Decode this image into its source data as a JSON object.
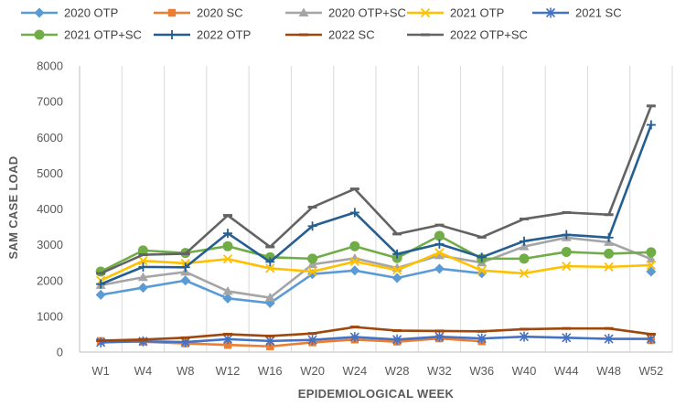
{
  "chart_data": {
    "type": "line",
    "title": "",
    "xlabel": "EPIDEMIOLOGICAL WEEK",
    "ylabel": "SAM CASE LOAD",
    "ylim": [
      0,
      8000
    ],
    "yticks": [
      0,
      1000,
      2000,
      3000,
      4000,
      5000,
      6000,
      7000,
      8000
    ],
    "grid": "vertical",
    "legend_position": "top",
    "categories": [
      "W1",
      "W4",
      "W8",
      "W12",
      "W16",
      "W20",
      "W24",
      "W28",
      "W32",
      "W36",
      "W40",
      "W44",
      "W48",
      "W52"
    ],
    "series": [
      {
        "name": "2020 OTP",
        "color": "#5B9BD5",
        "marker": "diamond",
        "values": [
          1600,
          1800,
          2000,
          1500,
          1370,
          2180,
          2280,
          2070,
          2330,
          2200,
          null,
          null,
          null,
          2250
        ]
      },
      {
        "name": "2020 SC",
        "color": "#ED7D31",
        "marker": "square",
        "values": [
          310,
          290,
          240,
          200,
          160,
          270,
          350,
          290,
          380,
          300,
          null,
          null,
          null,
          330
        ]
      },
      {
        "name": "2020 OTP+SC",
        "color": "#A5A5A5",
        "marker": "triangle",
        "values": [
          1870,
          2090,
          2240,
          1700,
          1520,
          2450,
          2620,
          2350,
          2700,
          2500,
          2950,
          3200,
          3070,
          2600
        ]
      },
      {
        "name": "2021 OTP",
        "color": "#FFC000",
        "marker": "x",
        "values": [
          2000,
          2550,
          2480,
          2600,
          2340,
          2250,
          2530,
          2290,
          2780,
          2280,
          2200,
          2400,
          2380,
          2430
        ]
      },
      {
        "name": "2021 SC",
        "color": "#4472C4",
        "marker": "star",
        "values": [
          270,
          300,
          280,
          360,
          310,
          340,
          420,
          350,
          430,
          380,
          430,
          400,
          370,
          370
        ]
      },
      {
        "name": "2021 OTP+SC",
        "color": "#70AD47",
        "marker": "circle",
        "values": [
          2250,
          2840,
          2770,
          2960,
          2650,
          2610,
          2960,
          2630,
          3250,
          2610,
          2610,
          2800,
          2750,
          2790
        ]
      },
      {
        "name": "2022 OTP",
        "color": "#255E91",
        "marker": "plus",
        "values": [
          1900,
          2380,
          2370,
          3320,
          2520,
          3520,
          3900,
          2740,
          3020,
          2650,
          3100,
          3280,
          3200,
          6350
        ]
      },
      {
        "name": "2022 SC",
        "color": "#9E480E",
        "marker": "dash",
        "values": [
          320,
          350,
          400,
          500,
          450,
          520,
          700,
          600,
          590,
          580,
          640,
          660,
          660,
          500
        ]
      },
      {
        "name": "2022 OTP+SC",
        "color": "#636363",
        "marker": "dash",
        "values": [
          2200,
          2720,
          2750,
          3820,
          2940,
          4050,
          4560,
          3300,
          3550,
          3210,
          3720,
          3900,
          3840,
          6880
        ]
      }
    ]
  }
}
